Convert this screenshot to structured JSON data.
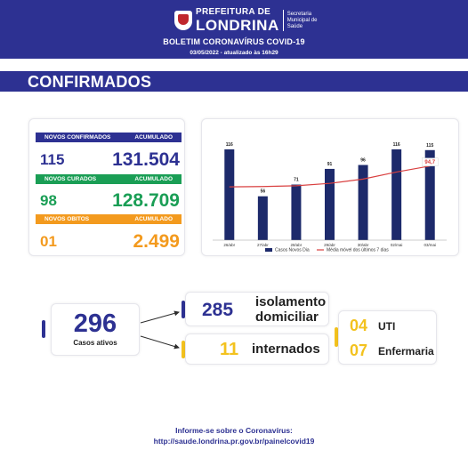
{
  "header": {
    "org_small": "PREFEITURA DE",
    "org_big": "LONDRINA",
    "secretariat": [
      "Secretaria",
      "Municipal de",
      "Saúde"
    ],
    "bulletin_title": "BOLETIM CORONAVÍRUS COVID-19",
    "date_line": "03/05/2022 - atualizado às 16h29"
  },
  "section": {
    "title": "CONFIRMADOS"
  },
  "stats": {
    "new_confirmed_label": "NOVOS CONFIRMADOS",
    "cumulative_label": "ACUMULADO",
    "new_confirmed": "115",
    "confirmed_total": "131.504",
    "new_recovered_label": "NOVOS CURADOS",
    "new_recovered": "98",
    "recovered_total": "128.709",
    "new_deaths_label": "NOVOS OBITOS",
    "new_deaths": "01",
    "deaths_total": "2.499"
  },
  "chart_data": {
    "type": "bar",
    "categories": [
      "26/abr",
      "27/abr",
      "28/abr",
      "29/abr",
      "30/abr",
      "02/mai",
      "03/mai"
    ],
    "series": [
      {
        "name": "Casos Novos Dia",
        "type": "bar",
        "values": [
          116,
          56,
          71,
          91,
          96,
          116,
          115
        ],
        "color": "#1d2a6b"
      },
      {
        "name": "Média móvel dos últimos 7 dias",
        "type": "line",
        "values": [
          68,
          68.5,
          69.5,
          72.5,
          78,
          87,
          94.7
        ],
        "color": "#d94040"
      }
    ],
    "data_labels": [
      "116",
      "56",
      "71",
      "91",
      "96",
      "116",
      "115"
    ],
    "last_average_label": "94,7",
    "ylim": [
      0,
      125
    ],
    "grid": false,
    "legend_position": "bottom"
  },
  "summary": {
    "active_cases": "296",
    "active_label": "Casos ativos",
    "home_isolation": "285",
    "home_isolation_label_1": "isolamento",
    "home_isolation_label_2": "domiciliar",
    "hospitalized": "11",
    "hospitalized_label": "internados",
    "icu": "04",
    "icu_label": "UTI",
    "ward": "07",
    "ward_label": "Enfermaria"
  },
  "footer": {
    "line1": "Informe-se sobre o Coronavírus:",
    "line2": "http://saude.londrina.pr.gov.br/painelcovid19"
  },
  "colors": {
    "brand_blue": "#2d3192",
    "green": "#1a9e55",
    "orange": "#f39a1e",
    "yellow": "#f3c21e",
    "bar_navy": "#1d2a6b",
    "average_red": "#d94040"
  }
}
